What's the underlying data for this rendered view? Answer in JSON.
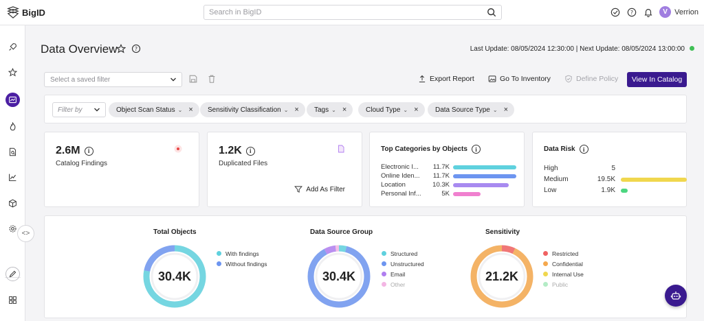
{
  "app": {
    "brand": "BigID",
    "search_placeholder": "Search in BigID",
    "user_initial": "V",
    "user_name": "Verrion"
  },
  "header": {
    "title": "Data Overview",
    "update_text": "Last Update: 08/05/2024 12:30:00 | Next Update: 08/05/2024 13:00:00",
    "status_color": "#3fbf55"
  },
  "toolbar": {
    "saved_filter_placeholder": "Select a saved filter",
    "export_label": "Export Report",
    "inventory_label": "Go To Inventory",
    "define_policy_label": "Define Policy",
    "view_catalog_label": "View In Catalog"
  },
  "filters": {
    "filter_by_placeholder": "Filter by",
    "chips": [
      "Object Scan Status",
      "Sensitivity Classification",
      "Tags",
      "Cloud Type",
      "Data Source Type"
    ]
  },
  "cards": {
    "findings": {
      "value": "2.6M",
      "label": "Catalog Findings"
    },
    "duplicates": {
      "value": "1.2K",
      "label": "Duplicated Files",
      "action": "Add As Filter"
    },
    "categories": {
      "title": "Top Categories by Objects",
      "rows": [
        {
          "name": "Electronic I...",
          "value": "11.7K",
          "fraction": 1.0,
          "color": "#5fd1de"
        },
        {
          "name": "Online Iden...",
          "value": "11.7K",
          "fraction": 1.0,
          "color": "#6d95f0"
        },
        {
          "name": "Location",
          "value": "10.3K",
          "fraction": 0.88,
          "color": "#a88af0"
        },
        {
          "name": "Personal Inf...",
          "value": "5K",
          "fraction": 0.43,
          "color": "#f080cf"
        }
      ]
    },
    "risk": {
      "title": "Data Risk",
      "rows": [
        {
          "name": "High",
          "value": "5",
          "fraction": 0,
          "color": "#f05a5a"
        },
        {
          "name": "Medium",
          "value": "19.5K",
          "fraction": 1.0,
          "color": "#f0d74e"
        },
        {
          "name": "Low",
          "value": "1.9K",
          "fraction": 0.1,
          "color": "#4cd680"
        }
      ]
    }
  },
  "donuts": [
    {
      "title": "Total Objects",
      "center": "30.4K",
      "legend": [
        {
          "label": "With findings",
          "color": "#5fd1de",
          "muted": false
        },
        {
          "label": "Without findings",
          "color": "#6d95f0",
          "muted": false
        }
      ]
    },
    {
      "title": "Data Source Group",
      "center": "30.4K",
      "legend": [
        {
          "label": "Structured",
          "color": "#5fd1de",
          "muted": false
        },
        {
          "label": "Unstructured",
          "color": "#6d95f0",
          "muted": false
        },
        {
          "label": "Email",
          "color": "#b07ef0",
          "muted": false
        },
        {
          "label": "Other",
          "color": "#f3b6e4",
          "muted": true
        }
      ]
    },
    {
      "title": "Sensitivity",
      "center": "21.2K",
      "legend": [
        {
          "label": "Restricted",
          "color": "#f06262",
          "muted": false
        },
        {
          "label": "Confidential",
          "color": "#f5a84d",
          "muted": false
        },
        {
          "label": "Internal Use",
          "color": "#f0d74e",
          "muted": false
        },
        {
          "label": "Public",
          "color": "#b4ecc6",
          "muted": true
        }
      ]
    }
  ],
  "chart_data": [
    {
      "type": "pie",
      "title": "Total Objects",
      "categories": [
        "With findings",
        "Without findings"
      ],
      "values": [
        78,
        22
      ]
    },
    {
      "type": "pie",
      "title": "Data Source Group",
      "categories": [
        "Structured",
        "Unstructured",
        "Email",
        "Other"
      ],
      "values": [
        4,
        88,
        6,
        2
      ]
    },
    {
      "type": "pie",
      "title": "Sensitivity",
      "categories": [
        "Restricted",
        "Confidential",
        "Internal Use",
        "Public"
      ],
      "values": [
        7,
        93,
        0,
        0
      ]
    }
  ]
}
